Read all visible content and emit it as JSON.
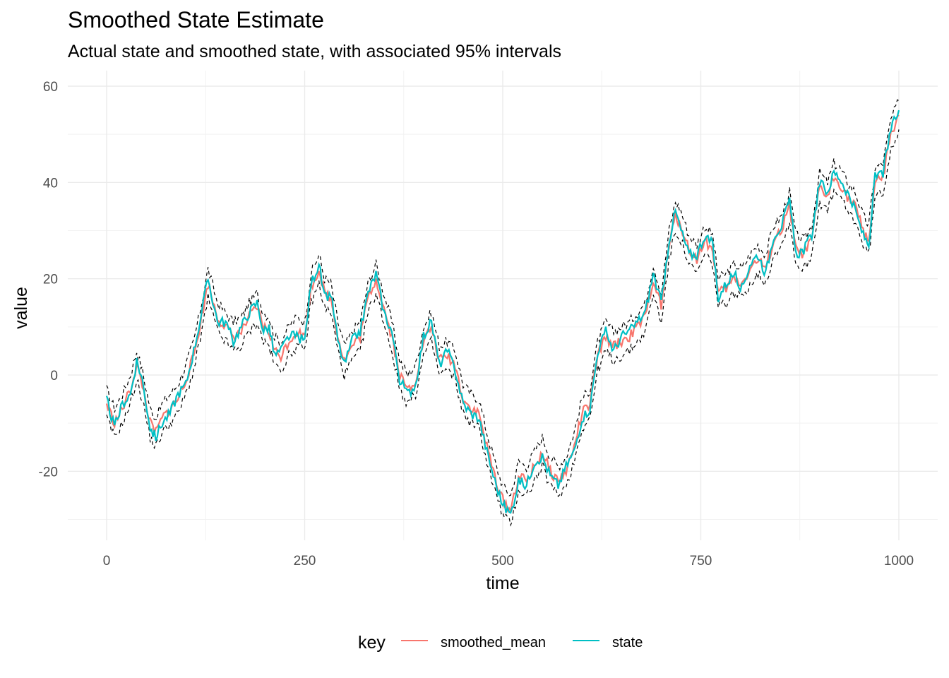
{
  "chart_data": {
    "type": "line",
    "title": "Smoothed State Estimate",
    "subtitle": "Actual state and smoothed state, with associated 95% intervals",
    "xlabel": "time",
    "ylabel": "value",
    "xlim": [
      0,
      1000
    ],
    "ylim": [
      -30,
      60
    ],
    "x_ticks": [
      0,
      250,
      500,
      750,
      1000
    ],
    "x_tick_labels": [
      "0",
      "250",
      "500",
      "750",
      "1000"
    ],
    "y_ticks": [
      -20,
      0,
      20,
      40,
      60
    ],
    "y_tick_labels": [
      "-20",
      "0",
      "20",
      "40",
      "60"
    ],
    "grid": true,
    "legend_position": "bottom",
    "legend_title": "key",
    "interval_halfwidth": 3,
    "x": [
      0,
      10,
      20,
      30,
      38,
      45,
      55,
      62,
      70,
      80,
      90,
      100,
      110,
      120,
      128,
      140,
      150,
      160,
      170,
      180,
      190,
      198,
      205,
      212,
      220,
      230,
      240,
      250,
      258,
      268,
      275,
      283,
      292,
      300,
      310,
      320,
      330,
      340,
      350,
      360,
      370,
      380,
      390,
      400,
      410,
      420,
      430,
      440,
      450,
      460,
      470,
      480,
      490,
      500,
      510,
      520,
      530,
      540,
      550,
      560,
      570,
      580,
      590,
      600,
      610,
      620,
      630,
      640,
      650,
      660,
      670,
      680,
      690,
      700,
      710,
      718,
      725,
      735,
      745,
      755,
      765,
      772,
      782,
      792,
      802,
      812,
      822,
      832,
      842,
      852,
      862,
      870,
      880,
      890,
      900,
      910,
      918,
      925,
      935,
      945,
      955,
      962,
      970,
      980,
      990,
      1000
    ],
    "series": [
      {
        "name": "smoothed_mean",
        "color": "#F8766D",
        "values": [
          -6,
          -10,
          -7,
          -3,
          2,
          -2,
          -10,
          -12,
          -9,
          -7,
          -5,
          -1,
          4,
          12,
          19,
          12,
          10,
          8,
          9,
          12,
          14,
          10,
          9,
          5,
          4,
          7,
          9,
          8,
          18,
          22,
          17,
          16,
          8,
          3,
          6,
          8,
          16,
          20,
          14,
          8,
          0,
          -3,
          -1,
          7,
          10,
          3,
          4,
          2,
          -5,
          -7,
          -8,
          -15,
          -21,
          -26,
          -28,
          -21,
          -22,
          -19,
          -16,
          -20,
          -22,
          -20,
          -15,
          -8,
          -6,
          4,
          8,
          6,
          7,
          8,
          10,
          12,
          20,
          14,
          27,
          33,
          31,
          26,
          24,
          28,
          26,
          17,
          18,
          20,
          19,
          22,
          24,
          22,
          28,
          30,
          35,
          26,
          25,
          28,
          39,
          37,
          41,
          40,
          37,
          35,
          30,
          28,
          40,
          41,
          50,
          54
        ]
      },
      {
        "name": "state",
        "color": "#00BFC4",
        "values": [
          -5,
          -11,
          -6,
          -4,
          3,
          -1,
          -11,
          -13,
          -10,
          -8,
          -4,
          -2,
          5,
          13,
          20,
          11,
          11,
          7,
          10,
          13,
          15,
          9,
          10,
          4,
          5,
          8,
          8,
          7,
          19,
          23,
          16,
          17,
          7,
          2,
          7,
          9,
          17,
          21,
          13,
          9,
          -1,
          -4,
          -2,
          8,
          11,
          2,
          5,
          1,
          -6,
          -8,
          -9,
          -16,
          -22,
          -27,
          -29,
          -22,
          -23,
          -18,
          -17,
          -21,
          -23,
          -19,
          -16,
          -9,
          -7,
          5,
          9,
          5,
          8,
          9,
          11,
          13,
          21,
          15,
          28,
          34,
          30,
          25,
          25,
          29,
          27,
          16,
          19,
          21,
          18,
          23,
          25,
          21,
          29,
          31,
          36,
          25,
          26,
          29,
          40,
          38,
          42,
          41,
          38,
          34,
          29,
          27,
          41,
          42,
          51,
          55
        ]
      }
    ]
  }
}
